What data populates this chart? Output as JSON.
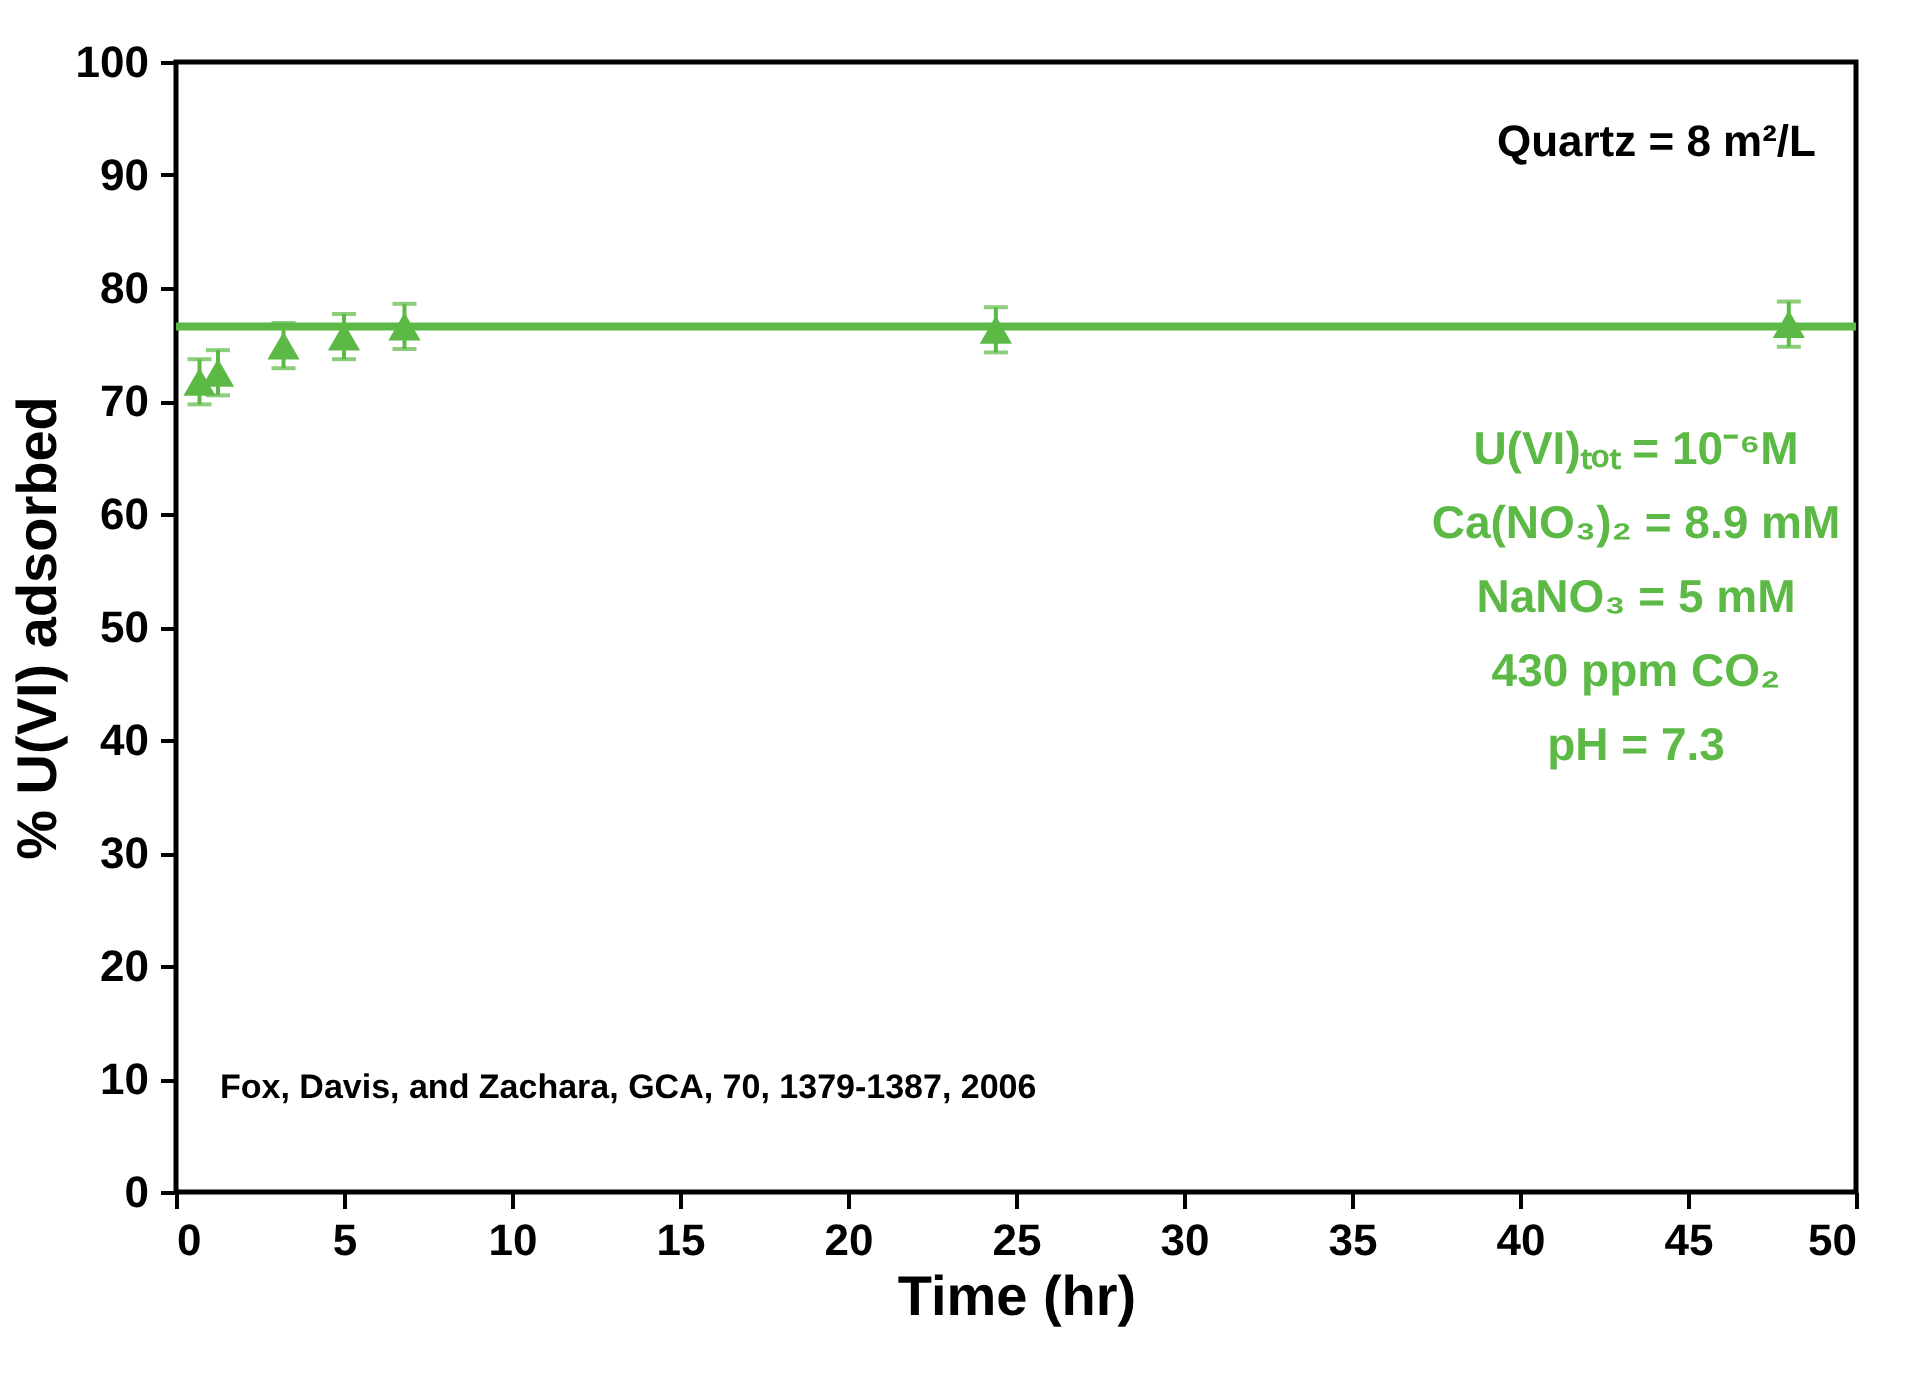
{
  "chart_data": {
    "type": "scatter",
    "xlabel": "Time (hr)",
    "ylabel": "% U(VI) adsorbed",
    "x": [
      0.7,
      1.25,
      3.2,
      5,
      6.8,
      24.4,
      48
    ],
    "series": [
      {
        "color": "#5cb946",
        "marker": "triangle",
        "values": [
          71.7,
          72.5,
          74.9,
          75.7,
          76.6,
          76.3,
          76.8
        ],
        "errors": [
          2.0,
          2.0,
          2.0,
          2.0,
          2.0,
          2.0,
          2.0
        ]
      },
      {
        "type": "line",
        "color": "#5cb946",
        "x": [
          0,
          50
        ],
        "values": [
          76.6,
          76.6
        ]
      }
    ],
    "xlim": [
      0,
      50
    ],
    "xticks": [
      0,
      5,
      10,
      15,
      20,
      25,
      30,
      35,
      40,
      45,
      50
    ],
    "ylim": [
      0,
      100
    ],
    "yticks": [
      0,
      10,
      20,
      30,
      40,
      50,
      60,
      70,
      80,
      90,
      100
    ],
    "grid": false,
    "annotations": [
      "Quartz = 8 m²/L",
      "U(VI)ₜₒₜ = 10⁻⁶M",
      "Ca(NO₃)₂ = 8.9 mM",
      "NaNO₃ = 5 mM",
      "430 ppm CO₂",
      "pH = 7.3",
      "Fox, Davis, and Zachara, GCA, 70, 1379-1387, 2006"
    ]
  }
}
